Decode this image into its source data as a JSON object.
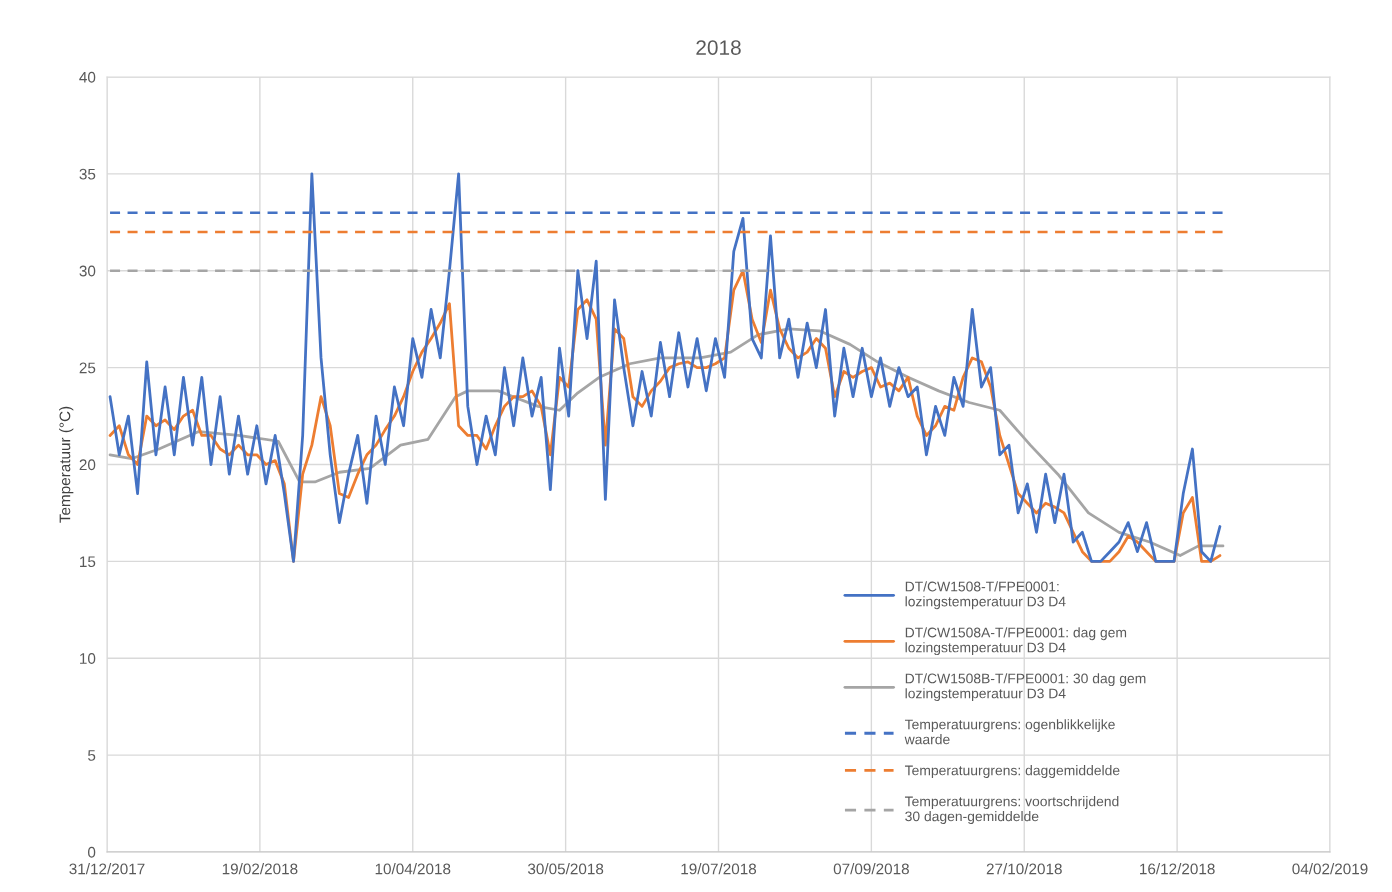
{
  "chart_data": {
    "type": "line",
    "title": "2018",
    "ylabel": "Temperatuur (°C)",
    "x": [
      "2018-01-01",
      "2018-01-04",
      "2018-01-07",
      "2018-01-10",
      "2018-01-13",
      "2018-01-16",
      "2018-01-19",
      "2018-01-22",
      "2018-01-25",
      "2018-01-28",
      "2018-01-31",
      "2018-02-03",
      "2018-02-06",
      "2018-02-09",
      "2018-02-12",
      "2018-02-15",
      "2018-02-18",
      "2018-02-21",
      "2018-02-24",
      "2018-02-27",
      "2018-03-02",
      "2018-03-05",
      "2018-03-08",
      "2018-03-11",
      "2018-03-14",
      "2018-03-17",
      "2018-03-20",
      "2018-03-23",
      "2018-03-26",
      "2018-03-29",
      "2018-04-01",
      "2018-04-04",
      "2018-04-07",
      "2018-04-10",
      "2018-04-13",
      "2018-04-16",
      "2018-04-19",
      "2018-04-22",
      "2018-04-25",
      "2018-04-28",
      "2018-05-01",
      "2018-05-04",
      "2018-05-07",
      "2018-05-10",
      "2018-05-13",
      "2018-05-16",
      "2018-05-19",
      "2018-05-22",
      "2018-05-25",
      "2018-05-28",
      "2018-05-31",
      "2018-06-03",
      "2018-06-06",
      "2018-06-09",
      "2018-06-12",
      "2018-06-15",
      "2018-06-18",
      "2018-06-21",
      "2018-06-24",
      "2018-06-27",
      "2018-06-30",
      "2018-07-03",
      "2018-07-06",
      "2018-07-09",
      "2018-07-12",
      "2018-07-15",
      "2018-07-18",
      "2018-07-21",
      "2018-07-24",
      "2018-07-27",
      "2018-07-30",
      "2018-08-02",
      "2018-08-05",
      "2018-08-08",
      "2018-08-11",
      "2018-08-14",
      "2018-08-17",
      "2018-08-20",
      "2018-08-23",
      "2018-08-26",
      "2018-08-29",
      "2018-09-01",
      "2018-09-04",
      "2018-09-07",
      "2018-09-10",
      "2018-09-13",
      "2018-09-16",
      "2018-09-19",
      "2018-09-22",
      "2018-09-25",
      "2018-09-28",
      "2018-10-01",
      "2018-10-04",
      "2018-10-07",
      "2018-10-10",
      "2018-10-13",
      "2018-10-16",
      "2018-10-19",
      "2018-10-22",
      "2018-10-25",
      "2018-10-28",
      "2018-10-31",
      "2018-11-03",
      "2018-11-06",
      "2018-11-09",
      "2018-11-12",
      "2018-11-15",
      "2018-11-18",
      "2018-11-21",
      "2018-11-24",
      "2018-11-27",
      "2018-11-30",
      "2018-12-03",
      "2018-12-06",
      "2018-12-09",
      "2018-12-12",
      "2018-12-15",
      "2018-12-18",
      "2018-12-21",
      "2018-12-24",
      "2018-12-27",
      "2018-12-30"
    ],
    "series": [
      {
        "name": "DT/CW1508-T/FPE0001:\nlozingstemperatuur D3 D4",
        "color": "#4472c4",
        "values": [
          23.5,
          20.5,
          22.5,
          18.5,
          25.3,
          20.5,
          24.0,
          20.5,
          24.5,
          21.0,
          24.5,
          20.0,
          23.5,
          19.5,
          22.5,
          19.5,
          22.0,
          19.0,
          21.5,
          18.5,
          15.0,
          21.5,
          35,
          25.5,
          20.5,
          17.0,
          19.5,
          21.5,
          18.0,
          22.5,
          20.0,
          24.0,
          22.0,
          26.5,
          24.5,
          28.0,
          25.5,
          30.0,
          35,
          23.0,
          20.0,
          22.5,
          20.5,
          25.0,
          22.0,
          25.5,
          22.5,
          24.5,
          18.7,
          26.0,
          22.5,
          30.0,
          26.5,
          30.5,
          18.2,
          28.5,
          25.0,
          22.0,
          24.8,
          22.5,
          26.3,
          23.5,
          26.8,
          24.0,
          26.5,
          23.8,
          26.5,
          24.5,
          31.0,
          32.7,
          26.5,
          25.5,
          31.8,
          25.5,
          27.5,
          24.5,
          27.3,
          25.0,
          28.0,
          22.5,
          26.0,
          23.5,
          26.0,
          23.5,
          25.5,
          23.0,
          25.0,
          23.5,
          24.0,
          20.5,
          23.0,
          21.5,
          24.5,
          23.0,
          28.0,
          24.0,
          25.0,
          20.5,
          21.0,
          17.5,
          19.0,
          16.5,
          19.5,
          17.0,
          19.5,
          16.0,
          16.5,
          15.0,
          15.0,
          15.5,
          16.0,
          17.0,
          15.5,
          17.0,
          15.0,
          15.0,
          15.0,
          18.5,
          20.8,
          15.5,
          15.0,
          16.8
        ]
      },
      {
        "name": "DT/CW1508A-T/FPE0001: dag gem\nlozingstemperatuur D3 D4",
        "color": "#ed7d31",
        "values": [
          21.5,
          22.0,
          20.5,
          20.0,
          22.5,
          22.0,
          22.3,
          21.8,
          22.5,
          22.8,
          21.5,
          21.5,
          20.8,
          20.5,
          21.0,
          20.5,
          20.5,
          20.0,
          20.2,
          19.0,
          15.0,
          19.5,
          21.0,
          23.5,
          22.0,
          18.5,
          18.3,
          19.5,
          20.5,
          21.0,
          21.8,
          22.5,
          23.5,
          24.8,
          25.8,
          26.5,
          27.3,
          28.3,
          22.0,
          21.5,
          21.5,
          20.8,
          22.0,
          23.0,
          23.5,
          23.5,
          23.8,
          23.0,
          20.5,
          24.5,
          24.0,
          28.0,
          28.5,
          27.5,
          21.0,
          27.0,
          26.5,
          23.5,
          23.0,
          23.8,
          24.3,
          25.0,
          25.2,
          25.3,
          25.0,
          25.0,
          25.2,
          25.5,
          29.0,
          30.0,
          27.5,
          26.3,
          29.0,
          27.0,
          26.0,
          25.5,
          25.8,
          26.5,
          26.0,
          23.5,
          24.8,
          24.5,
          24.8,
          25.0,
          24.0,
          24.2,
          23.8,
          24.5,
          22.5,
          21.5,
          22.0,
          23.0,
          22.8,
          24.5,
          25.5,
          25.3,
          24.0,
          21.5,
          20.0,
          18.5,
          18.0,
          17.5,
          18.0,
          17.8,
          17.5,
          16.5,
          15.5,
          15.0,
          15.0,
          15.0,
          15.5,
          16.3,
          16.0,
          15.5,
          15.0,
          15.0,
          15.0,
          17.5,
          18.3,
          15.0,
          15.0,
          15.3
        ]
      },
      {
        "name": "DT/CW1508B-T/FPE0001: 30 dag gem\nlozingstemperatuur D3 D4",
        "color": "#a5a5a5",
        "x": [
          "2018-01-01",
          "2018-01-08",
          "2018-01-17",
          "2018-01-30",
          "2018-02-12",
          "2018-02-25",
          "2018-03-04",
          "2018-03-09",
          "2018-03-17",
          "2018-03-27",
          "2018-04-06",
          "2018-04-15",
          "2018-04-24",
          "2018-04-28",
          "2018-05-08",
          "2018-05-21",
          "2018-05-28",
          "2018-06-03",
          "2018-06-10",
          "2018-06-20",
          "2018-06-30",
          "2018-07-13",
          "2018-07-23",
          "2018-08-01",
          "2018-08-11",
          "2018-08-21",
          "2018-08-31",
          "2018-09-09",
          "2018-09-19",
          "2018-09-29",
          "2018-10-09",
          "2018-10-19",
          "2018-10-29",
          "2018-11-07",
          "2018-11-17",
          "2018-11-27",
          "2018-12-07",
          "2018-12-17",
          "2018-12-23",
          "2018-12-31"
        ],
        "values": [
          20.5,
          20.3,
          20.8,
          21.7,
          21.5,
          21.2,
          19.1,
          19.1,
          19.6,
          19.8,
          21.0,
          21.3,
          23.5,
          23.8,
          23.8,
          23.0,
          22.8,
          23.7,
          24.5,
          25.2,
          25.5,
          25.5,
          25.8,
          26.7,
          27.0,
          26.9,
          26.2,
          25.3,
          24.5,
          23.8,
          23.2,
          22.8,
          21.0,
          19.5,
          17.5,
          16.5,
          16.0,
          15.3,
          15.8,
          15.8
        ]
      },
      {
        "name": "Temperatuurgrens: ogenblikkelijke\nwaarde",
        "color": "#4472c4",
        "line_style": "dashed",
        "x": [
          "2018-01-01",
          "2018-12-31"
        ],
        "values": [
          33,
          33
        ]
      },
      {
        "name": "Temperatuurgrens: daggemiddelde",
        "color": "#ed7d31",
        "line_style": "dashed",
        "x": [
          "2018-01-01",
          "2018-12-31"
        ],
        "values": [
          32,
          32
        ]
      },
      {
        "name": "Temperatuurgrens: voortschrijdend\n30 dagen-gemiddelde",
        "color": "#a5a5a5",
        "line_style": "dashed",
        "x": [
          "2018-01-01",
          "2018-12-31"
        ],
        "values": [
          30,
          30
        ]
      }
    ],
    "xlim": [
      "2017-12-31",
      "2019-02-04"
    ],
    "xticks": [
      {
        "value": "2017-12-31",
        "label": "31/12/2017"
      },
      {
        "value": "2018-02-19",
        "label": "19/02/2018"
      },
      {
        "value": "2018-04-10",
        "label": "10/04/2018"
      },
      {
        "value": "2018-05-30",
        "label": "30/05/2018"
      },
      {
        "value": "2018-07-19",
        "label": "19/07/2018"
      },
      {
        "value": "2018-09-07",
        "label": "07/09/2018"
      },
      {
        "value": "2018-10-27",
        "label": "27/10/2018"
      },
      {
        "value": "2018-12-16",
        "label": "16/12/2018"
      },
      {
        "value": "2019-02-04",
        "label": "04/02/2019"
      }
    ],
    "ylim": [
      0,
      40
    ],
    "yticks": [
      0,
      5,
      10,
      15,
      20,
      25,
      30,
      35,
      40
    ],
    "grid": true,
    "legend": "bottom right",
    "marker": "none",
    "line_style": "solid"
  }
}
